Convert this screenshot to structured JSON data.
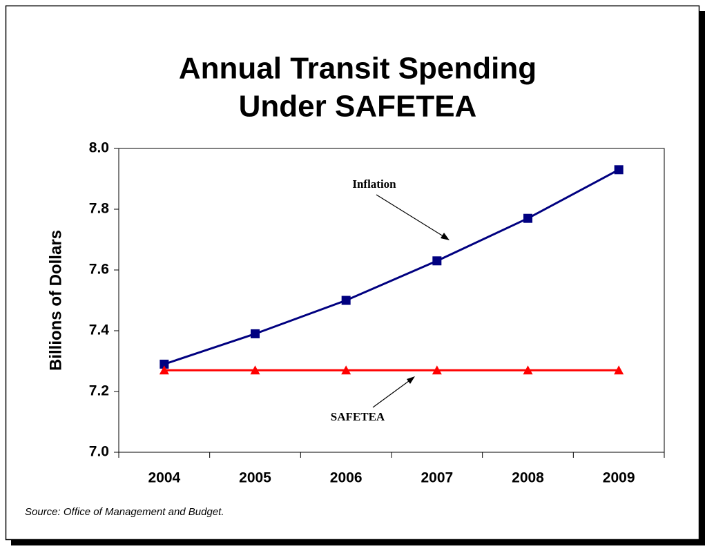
{
  "chart_data": {
    "type": "line",
    "title": "Annual Transit Spending",
    "subtitle": "Under SAFETEA",
    "y_label": "Billions of Dollars",
    "source": "Source:  Office of Management and Budget.",
    "categories": [
      "2004",
      "2005",
      "2006",
      "2007",
      "2008",
      "2009"
    ],
    "series": [
      {
        "name": "Inflation",
        "color": "#000080",
        "marker": "square",
        "values": [
          7.29,
          7.39,
          7.5,
          7.63,
          7.77,
          7.93
        ]
      },
      {
        "name": "SAFETEA",
        "color": "#ff0000",
        "marker": "triangle",
        "values": [
          7.27,
          7.27,
          7.27,
          7.27,
          7.27,
          7.27
        ]
      }
    ],
    "ylim": [
      7.0,
      8.0
    ],
    "yticks": [
      {
        "value": 7.0,
        "label": "7.0"
      },
      7.2,
      7.4,
      7.6,
      7.8,
      {
        "value": 8.0,
        "label": "8.0"
      }
    ],
    "grid": false
  }
}
